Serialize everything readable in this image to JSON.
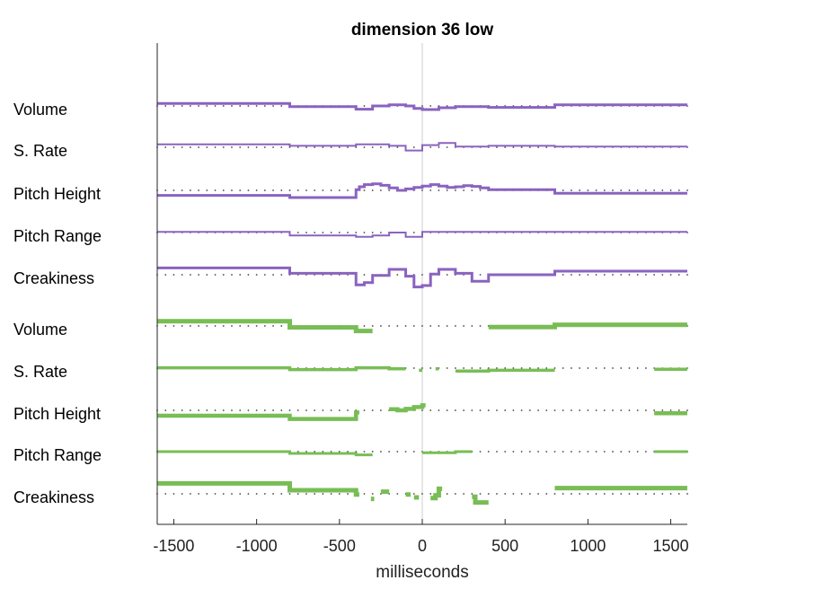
{
  "chart_data": {
    "type": "line",
    "title": "dimension 36 low",
    "xlabel": "milliseconds",
    "ylabel": "",
    "xlim": [
      -1600,
      1600
    ],
    "xticks": [
      -1500,
      -1000,
      -500,
      0,
      500,
      1000,
      1500
    ],
    "xtick_labels": [
      "-1500",
      "-1000",
      "-500",
      "0",
      "500",
      "1000",
      "1500"
    ],
    "zero_line": true,
    "colors": {
      "purple": "#8a63bf",
      "green": "#78bd55",
      "zero": "#cccccc",
      "dots": "#444444"
    },
    "group_purple": [
      {
        "label": "Volume",
        "stroke": 3,
        "steps": [
          [
            -1600,
            -800,
            0.35
          ],
          [
            -800,
            -400,
            -0.1
          ],
          [
            -400,
            -300,
            -0.45
          ],
          [
            -300,
            -200,
            0.0
          ],
          [
            -200,
            -100,
            0.15
          ],
          [
            -100,
            -50,
            0.0
          ],
          [
            -50,
            0,
            -0.35
          ],
          [
            0,
            100,
            -0.5
          ],
          [
            100,
            200,
            -0.25
          ],
          [
            200,
            400,
            -0.1
          ],
          [
            400,
            800,
            -0.2
          ],
          [
            800,
            1600,
            0.15
          ]
        ]
      },
      {
        "label": "S. Rate",
        "stroke": 2,
        "steps": [
          [
            -1600,
            -800,
            0.4
          ],
          [
            -800,
            -400,
            0.2
          ],
          [
            -400,
            -200,
            0.4
          ],
          [
            -200,
            -100,
            0.2
          ],
          [
            -100,
            0,
            -0.45
          ],
          [
            0,
            100,
            0.3
          ],
          [
            100,
            200,
            0.6
          ],
          [
            200,
            400,
            0.1
          ],
          [
            400,
            800,
            0.2
          ],
          [
            800,
            1600,
            0.1
          ]
        ]
      },
      {
        "label": "Pitch Height",
        "stroke": 3,
        "steps": [
          [
            -1600,
            -800,
            -0.7
          ],
          [
            -800,
            -400,
            -1.0
          ],
          [
            -400,
            -380,
            0.1
          ],
          [
            -380,
            -350,
            0.5
          ],
          [
            -350,
            -300,
            0.8
          ],
          [
            -300,
            -250,
            0.9
          ],
          [
            -250,
            -200,
            0.7
          ],
          [
            -200,
            -150,
            0.35
          ],
          [
            -150,
            -100,
            0.0
          ],
          [
            -100,
            -50,
            0.2
          ],
          [
            -50,
            0,
            0.4
          ],
          [
            0,
            50,
            0.6
          ],
          [
            50,
            100,
            0.8
          ],
          [
            100,
            150,
            0.6
          ],
          [
            150,
            200,
            0.4
          ],
          [
            200,
            250,
            0.5
          ],
          [
            250,
            300,
            0.65
          ],
          [
            300,
            350,
            0.55
          ],
          [
            350,
            400,
            0.35
          ],
          [
            400,
            800,
            0.1
          ],
          [
            800,
            1600,
            -0.4
          ]
        ]
      },
      {
        "label": "Pitch Range",
        "stroke": 2,
        "steps": [
          [
            -1600,
            -800,
            0.1
          ],
          [
            -800,
            -400,
            -0.4
          ],
          [
            -400,
            -300,
            -0.6
          ],
          [
            -300,
            -200,
            -0.4
          ],
          [
            -200,
            -100,
            0.0
          ],
          [
            -100,
            0,
            -0.6
          ],
          [
            0,
            1600,
            0.1
          ]
        ]
      },
      {
        "label": "Creakiness",
        "stroke": 3,
        "steps": [
          [
            -1600,
            -800,
            0.95
          ],
          [
            -800,
            -400,
            0.2
          ],
          [
            -400,
            -350,
            -1.4
          ],
          [
            -350,
            -300,
            -1.1
          ],
          [
            -300,
            -200,
            -0.1
          ],
          [
            -200,
            -100,
            0.75
          ],
          [
            -100,
            -50,
            -0.2
          ],
          [
            -50,
            0,
            -1.7
          ],
          [
            0,
            50,
            -1.5
          ],
          [
            50,
            100,
            0.1
          ],
          [
            100,
            200,
            0.75
          ],
          [
            200,
            300,
            0.2
          ],
          [
            300,
            400,
            -0.9
          ],
          [
            400,
            800,
            0.0
          ],
          [
            800,
            1600,
            0.5
          ]
        ]
      }
    ],
    "group_green": [
      {
        "label": "Volume",
        "stroke": 5,
        "steps": [
          [
            -1600,
            -800,
            0.65
          ],
          [
            -800,
            -400,
            -0.2
          ],
          [
            -400,
            -300,
            -0.7
          ],
          [
            400,
            800,
            -0.15
          ],
          [
            800,
            1600,
            0.15
          ]
        ]
      },
      {
        "label": "S. Rate",
        "stroke": 3.5,
        "steps": [
          [
            -1600,
            -800,
            0.05
          ],
          [
            -800,
            -400,
            -0.2
          ],
          [
            -400,
            -200,
            0.05
          ],
          [
            -200,
            -100,
            -0.1
          ],
          [
            -20,
            0,
            -0.3
          ],
          [
            80,
            100,
            -0.1
          ],
          [
            200,
            400,
            -0.4
          ],
          [
            400,
            800,
            -0.3
          ],
          [
            1400,
            1600,
            -0.15
          ]
        ]
      },
      {
        "label": "Pitch Height",
        "stroke": 4.5,
        "steps": [
          [
            -1600,
            -800,
            -0.75
          ],
          [
            -800,
            -400,
            -1.2
          ],
          [
            -400,
            -380,
            -0.3
          ],
          [
            -200,
            -150,
            0.15
          ],
          [
            -150,
            -100,
            0.0
          ],
          [
            -100,
            -50,
            0.2
          ],
          [
            -50,
            0,
            0.45
          ],
          [
            0,
            20,
            0.7
          ],
          [
            1400,
            1600,
            -0.4
          ]
        ]
      },
      {
        "label": "Pitch Range",
        "stroke": 3,
        "steps": [
          [
            -1600,
            -800,
            0.0
          ],
          [
            -800,
            -400,
            -0.25
          ],
          [
            -400,
            -300,
            -0.45
          ],
          [
            0,
            200,
            -0.15
          ],
          [
            200,
            300,
            0.0
          ],
          [
            1400,
            1600,
            0.0
          ]
        ]
      },
      {
        "label": "Creakiness",
        "stroke": 5,
        "steps": [
          [
            -1600,
            -800,
            1.45
          ],
          [
            -800,
            -400,
            0.5
          ],
          [
            -400,
            -380,
            -0.1
          ],
          [
            -310,
            -290,
            -0.7
          ],
          [
            -250,
            -200,
            0.3
          ],
          [
            -100,
            -70,
            -0.1
          ],
          [
            -50,
            -20,
            -0.5
          ],
          [
            50,
            80,
            -0.6
          ],
          [
            80,
            100,
            -0.2
          ],
          [
            100,
            120,
            0.7
          ],
          [
            300,
            320,
            -0.4
          ],
          [
            320,
            400,
            -1.2
          ],
          [
            800,
            1600,
            0.8
          ]
        ]
      }
    ]
  }
}
